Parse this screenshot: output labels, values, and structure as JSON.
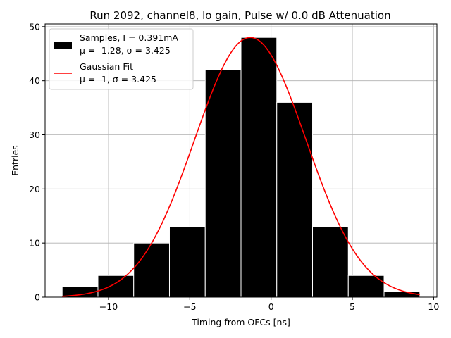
{
  "chart_data": {
    "type": "histogram",
    "title": "Run 2092, channel8, lo gain, Pulse w/ 0.0 dB Attenuation",
    "xlabel": "Timing from OFCs [ns]",
    "ylabel": "Entries",
    "xlim": [
      -13.9,
      10.2
    ],
    "ylim": [
      0,
      50.5
    ],
    "grid": true,
    "xticks": [
      -10,
      -5,
      0,
      5,
      10
    ],
    "xtick_labels": [
      "−10",
      "−5",
      "0",
      "5",
      "10"
    ],
    "yticks": [
      0,
      10,
      20,
      30,
      40,
      50
    ],
    "ytick_labels": [
      "0",
      "10",
      "20",
      "30",
      "40",
      "50"
    ],
    "bins": [
      {
        "left": -12.85,
        "right": -10.65,
        "count": 2
      },
      {
        "left": -10.65,
        "right": -8.45,
        "count": 4
      },
      {
        "left": -8.45,
        "right": -6.25,
        "count": 10
      },
      {
        "left": -6.25,
        "right": -4.05,
        "count": 13
      },
      {
        "left": -4.05,
        "right": -1.85,
        "count": 42
      },
      {
        "left": -1.85,
        "right": 0.35,
        "count": 48
      },
      {
        "left": 0.35,
        "right": 2.55,
        "count": 36
      },
      {
        "left": 2.55,
        "right": 4.75,
        "count": 13
      },
      {
        "left": 4.75,
        "right": 6.95,
        "count": 4
      },
      {
        "left": 6.95,
        "right": 9.15,
        "count": 1
      }
    ],
    "fit": {
      "type": "gaussian",
      "amplitude": 48,
      "mu": -1.28,
      "sigma": 3.425,
      "x_range": [
        -12.85,
        9.15
      ],
      "color": "#ff0000"
    },
    "bar_color": "#000000",
    "bar_edge_color": "#ffffff",
    "legend_position": "top-left",
    "legend": [
      {
        "name": "samples",
        "line1": "Samples, I = 0.391mA",
        "line2": "μ = -1.28, σ = 3.425",
        "color": "#000000"
      },
      {
        "name": "gaussian-fit",
        "line1": "Gaussian Fit",
        "line2": "μ = -1, σ = 3.425",
        "color": "#ff0000"
      }
    ]
  }
}
